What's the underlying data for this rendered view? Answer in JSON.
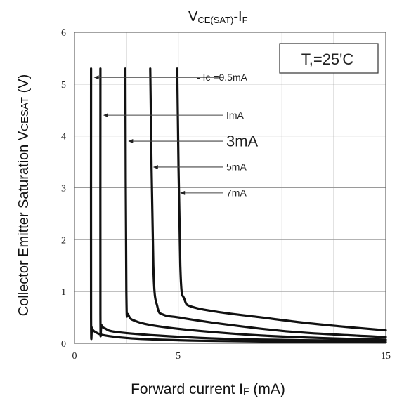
{
  "chart_data": {
    "type": "line",
    "title": {
      "main": "V",
      "sub": "CE(SAT)",
      "dash": "-I",
      "sub2": "F"
    },
    "xlabel": {
      "pre": "Forward current I",
      "sub": "F",
      "post": " (mA)"
    },
    "ylabel": {
      "pre": "Collector Emitter Saturation  V",
      "sub": "CESAT",
      "post": " (V)"
    },
    "annotation": "T,=25'C",
    "xlim": [
      0,
      15
    ],
    "ylim": [
      0,
      6
    ],
    "x_ticks": [
      0,
      5,
      15
    ],
    "x_tick_labels": [
      "0",
      "5",
      "15"
    ],
    "y_ticks": [
      0,
      1,
      2,
      3,
      4,
      5,
      6
    ],
    "y_tick_labels": [
      "0",
      "1",
      "2",
      "3",
      "4",
      "5",
      "6"
    ],
    "grid": true,
    "series": [
      {
        "name": "Ic =0.5mA",
        "x": [
          0.8,
          0.8,
          0.85,
          1.0,
          1.5,
          3,
          6,
          10,
          15
        ],
        "y": [
          5.3,
          0.5,
          0.3,
          0.22,
          0.15,
          0.09,
          0.05,
          0.03,
          0.02
        ]
      },
      {
        "name": "ImA",
        "x": [
          1.25,
          1.25,
          1.3,
          1.5,
          2,
          4,
          7,
          11,
          15
        ],
        "y": [
          5.3,
          0.55,
          0.35,
          0.28,
          0.22,
          0.15,
          0.09,
          0.06,
          0.05
        ]
      },
      {
        "name": "3mA",
        "x": [
          2.45,
          2.5,
          2.6,
          3,
          4,
          6,
          9,
          12,
          15
        ],
        "y": [
          5.3,
          1.0,
          0.55,
          0.42,
          0.33,
          0.24,
          0.15,
          0.1,
          0.07
        ]
      },
      {
        "name": "5mA",
        "x": [
          3.65,
          3.8,
          4.0,
          4.3,
          5,
          7,
          10,
          12.5,
          15
        ],
        "y": [
          5.3,
          1.5,
          0.7,
          0.55,
          0.5,
          0.38,
          0.24,
          0.17,
          0.12
        ]
      },
      {
        "name": "7mA",
        "x": [
          4.95,
          5.1,
          5.3,
          5.7,
          7,
          9,
          11,
          13,
          15
        ],
        "y": [
          5.3,
          1.5,
          0.85,
          0.7,
          0.6,
          0.5,
          0.4,
          0.32,
          0.25
        ]
      }
    ],
    "curve_labels": [
      {
        "text": "- Ic =0.5mA",
        "series": 0,
        "arrow_y": 5.13
      },
      {
        "text": "ImA",
        "series": 1,
        "arrow_y": 4.4
      },
      {
        "text": "3mA",
        "series": 2,
        "arrow_y": 3.9
      },
      {
        "text": "5mA",
        "series": 3,
        "arrow_y": 3.4
      },
      {
        "text": "7mA",
        "series": 4,
        "arrow_y": 2.9
      }
    ]
  }
}
